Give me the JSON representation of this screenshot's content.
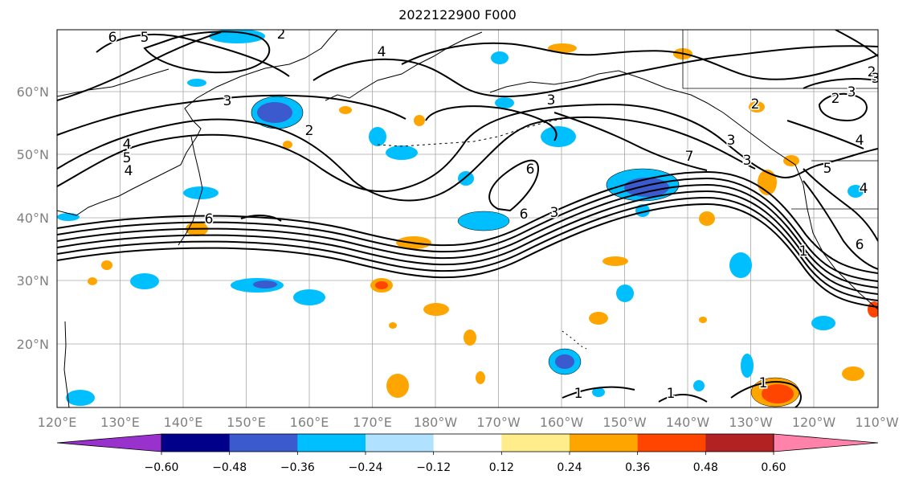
{
  "title": "2022122900 F000",
  "lon_ticks": [
    "120°E",
    "130°E",
    "140°E",
    "150°E",
    "160°E",
    "170°E",
    "180°W",
    "170°W",
    "160°W",
    "150°W",
    "140°W",
    "130°W",
    "120°W",
    "110°W"
  ],
  "lat_ticks": [
    "60°N",
    "50°N",
    "40°N",
    "30°N",
    "20°N"
  ],
  "colorbar": {
    "colors": [
      "#9932cc",
      "#00008b",
      "#3a5acd",
      "#00bfff",
      "#b0e2ff",
      "#ffffff",
      "#ffec8b",
      "#ffa500",
      "#ff4500",
      "#b22222",
      "#ff82ab"
    ],
    "tick_labels": [
      "−0.60",
      "−0.48",
      "−0.36",
      "−0.24",
      "−0.12",
      "0.12",
      "0.24",
      "0.36",
      "0.48",
      "0.60"
    ]
  },
  "contour_labels": [
    "6",
    "5",
    "4",
    "3",
    "2",
    "5",
    "4",
    "6",
    "3",
    "2",
    "6",
    "3",
    "2",
    "4",
    "3",
    "3",
    "2",
    "3",
    "4",
    "5",
    "6",
    "7",
    "1",
    "1",
    "1",
    "1",
    "2",
    "3",
    "4",
    "6"
  ]
}
